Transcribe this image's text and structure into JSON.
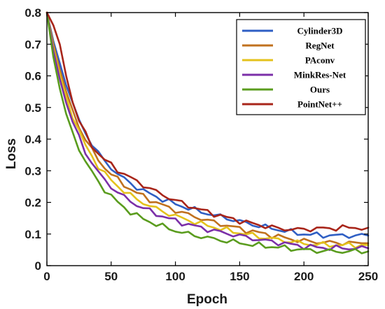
{
  "chart_data": {
    "type": "line",
    "title": "",
    "xlabel": "Epoch",
    "ylabel": "Loss",
    "xlim": [
      0,
      250
    ],
    "ylim": [
      0,
      0.8
    ],
    "xticks": [
      0,
      50,
      100,
      150,
      200,
      250
    ],
    "yticks": [
      0,
      0.1,
      0.2,
      0.3,
      0.4,
      0.5,
      0.6,
      0.7,
      0.8
    ],
    "grid": false,
    "legend_position": "top-right",
    "x": [
      0,
      5,
      10,
      15,
      20,
      25,
      30,
      35,
      40,
      45,
      50,
      55,
      60,
      65,
      70,
      75,
      80,
      85,
      90,
      95,
      100,
      105,
      110,
      115,
      120,
      125,
      130,
      135,
      140,
      145,
      150,
      155,
      160,
      165,
      170,
      175,
      180,
      185,
      190,
      195,
      200,
      205,
      210,
      215,
      220,
      225,
      230,
      235,
      240,
      245,
      250
    ],
    "series": [
      {
        "name": "Cylinder3D",
        "color": "#2f5fc4",
        "values": [
          0.8,
          0.71,
          0.64,
          0.57,
          0.51,
          0.46,
          0.42,
          0.385,
          0.355,
          0.33,
          0.31,
          0.29,
          0.275,
          0.26,
          0.248,
          0.237,
          0.227,
          0.218,
          0.21,
          0.202,
          0.195,
          0.188,
          0.182,
          0.176,
          0.17,
          0.165,
          0.16,
          0.155,
          0.15,
          0.145,
          0.14,
          0.135,
          0.13,
          0.126,
          0.122,
          0.118,
          0.114,
          0.11,
          0.106,
          0.103,
          0.1,
          0.098,
          0.097,
          0.096,
          0.096,
          0.095,
          0.095,
          0.095,
          0.095,
          0.095,
          0.095
        ]
      },
      {
        "name": "RegNet",
        "color": "#c0711e",
        "values": [
          0.8,
          0.7,
          0.62,
          0.55,
          0.49,
          0.44,
          0.4,
          0.365,
          0.335,
          0.31,
          0.29,
          0.272,
          0.256,
          0.242,
          0.23,
          0.219,
          0.209,
          0.2,
          0.191,
          0.183,
          0.175,
          0.168,
          0.161,
          0.155,
          0.149,
          0.143,
          0.137,
          0.132,
          0.127,
          0.122,
          0.117,
          0.112,
          0.108,
          0.104,
          0.1,
          0.096,
          0.092,
          0.088,
          0.084,
          0.081,
          0.078,
          0.076,
          0.075,
          0.074,
          0.073,
          0.072,
          0.072,
          0.072,
          0.071,
          0.071,
          0.071
        ]
      },
      {
        "name": "PAconv",
        "color": "#e4c21c",
        "values": [
          0.8,
          0.69,
          0.605,
          0.535,
          0.475,
          0.425,
          0.38,
          0.345,
          0.315,
          0.29,
          0.27,
          0.252,
          0.236,
          0.222,
          0.21,
          0.199,
          0.189,
          0.18,
          0.172,
          0.164,
          0.157,
          0.15,
          0.144,
          0.138,
          0.132,
          0.127,
          0.122,
          0.117,
          0.112,
          0.108,
          0.104,
          0.1,
          0.096,
          0.092,
          0.088,
          0.085,
          0.082,
          0.079,
          0.076,
          0.073,
          0.07,
          0.068,
          0.067,
          0.066,
          0.066,
          0.065,
          0.065,
          0.065,
          0.065,
          0.065,
          0.065
        ]
      },
      {
        "name": "MinkRes-Net",
        "color": "#7b2fa8",
        "values": [
          0.8,
          0.68,
          0.59,
          0.515,
          0.455,
          0.405,
          0.36,
          0.325,
          0.295,
          0.27,
          0.25,
          0.232,
          0.217,
          0.204,
          0.192,
          0.182,
          0.173,
          0.164,
          0.156,
          0.149,
          0.142,
          0.136,
          0.13,
          0.125,
          0.12,
          0.115,
          0.11,
          0.106,
          0.102,
          0.098,
          0.094,
          0.09,
          0.086,
          0.082,
          0.079,
          0.076,
          0.073,
          0.07,
          0.067,
          0.064,
          0.061,
          0.059,
          0.058,
          0.057,
          0.056,
          0.056,
          0.055,
          0.055,
          0.055,
          0.055,
          0.055
        ]
      },
      {
        "name": "Ours",
        "color": "#5a9c1e",
        "values": [
          0.8,
          0.66,
          0.56,
          0.48,
          0.42,
          0.37,
          0.33,
          0.295,
          0.265,
          0.24,
          0.22,
          0.2,
          0.184,
          0.17,
          0.158,
          0.148,
          0.139,
          0.131,
          0.124,
          0.117,
          0.111,
          0.105,
          0.1,
          0.096,
          0.092,
          0.088,
          0.084,
          0.081,
          0.078,
          0.075,
          0.072,
          0.069,
          0.066,
          0.064,
          0.062,
          0.06,
          0.058,
          0.056,
          0.054,
          0.052,
          0.05,
          0.048,
          0.047,
          0.046,
          0.046,
          0.045,
          0.045,
          0.045,
          0.045,
          0.045,
          0.045
        ]
      },
      {
        "name": "PointNet++",
        "color": "#a8251a",
        "values": [
          0.8,
          0.76,
          0.7,
          0.6,
          0.52,
          0.46,
          0.415,
          0.38,
          0.355,
          0.335,
          0.318,
          0.303,
          0.29,
          0.278,
          0.266,
          0.255,
          0.244,
          0.234,
          0.224,
          0.215,
          0.206,
          0.198,
          0.19,
          0.183,
          0.176,
          0.17,
          0.164,
          0.158,
          0.152,
          0.147,
          0.142,
          0.137,
          0.133,
          0.129,
          0.125,
          0.121,
          0.118,
          0.116,
          0.115,
          0.114,
          0.115,
          0.116,
          0.117,
          0.118,
          0.118,
          0.119,
          0.12,
          0.12,
          0.12,
          0.12,
          0.12
        ]
      }
    ]
  }
}
